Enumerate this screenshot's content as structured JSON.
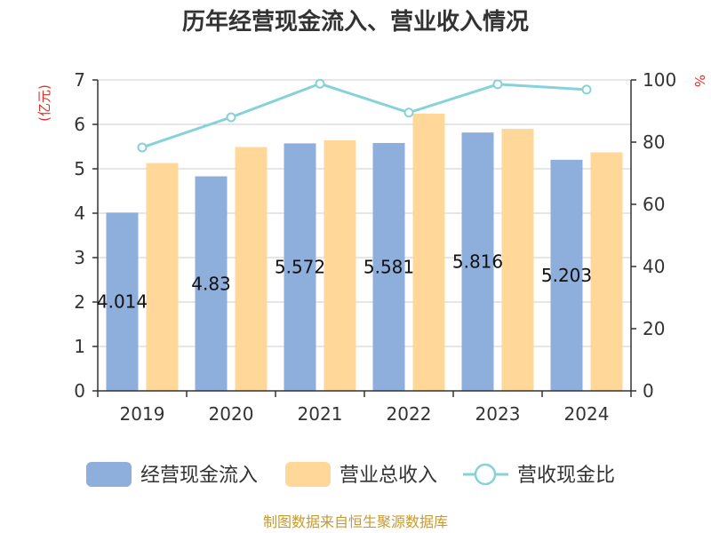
{
  "chart_data": {
    "type": "bar",
    "title": "历年经营现金流入、营业收入情况",
    "categories": [
      "2019",
      "2020",
      "2021",
      "2022",
      "2023",
      "2024"
    ],
    "series": [
      {
        "name": "经营现金流入",
        "type": "bar",
        "axis": "left",
        "color": "#8eaedb",
        "values": [
          4.014,
          4.83,
          5.572,
          5.581,
          5.816,
          5.203
        ],
        "data_labels": [
          "4.014",
          "4.83",
          "5.572",
          "5.581",
          "5.816",
          "5.203"
        ]
      },
      {
        "name": "营业总收入",
        "type": "bar",
        "axis": "left",
        "color": "#ffd899",
        "values": [
          5.13,
          5.49,
          5.64,
          6.24,
          5.9,
          5.37
        ]
      },
      {
        "name": "营收现金比",
        "type": "line",
        "axis": "right",
        "color": "#86d2d9",
        "values": [
          78.3,
          88.0,
          98.8,
          89.5,
          98.6,
          96.9
        ]
      }
    ],
    "left_axis": {
      "unit": "(亿元)",
      "ylim": [
        0,
        7
      ],
      "ticks": [
        "0",
        "1",
        "2",
        "3",
        "4",
        "5",
        "6",
        "7"
      ]
    },
    "right_axis": {
      "unit": "%",
      "ylim": [
        0,
        100
      ],
      "ticks": [
        "0",
        "20",
        "40",
        "60",
        "80",
        "100"
      ]
    },
    "grid": true,
    "legend_position": "bottom",
    "source": "制图数据来自恒生聚源数据库"
  }
}
